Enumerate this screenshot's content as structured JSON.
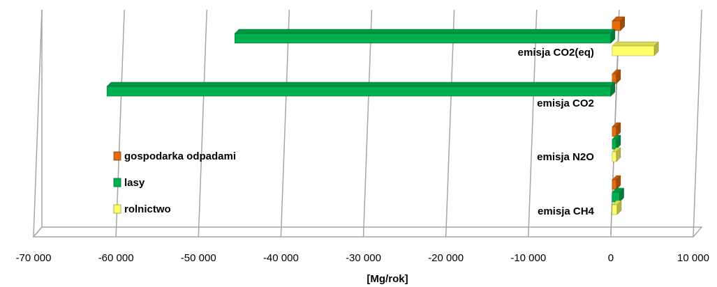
{
  "chart_data": {
    "type": "bar",
    "orientation": "horizontal",
    "style": "3d",
    "categories": [
      "emisja CO2(eq)",
      "emisja CO2",
      "emisja N2O",
      "emisja CH4"
    ],
    "series": [
      {
        "name": "gospodarka odpadami",
        "color": "#E46C0A",
        "values": [
          1000,
          400,
          400,
          400
        ]
      },
      {
        "name": "lasy",
        "color": "#00B050",
        "values": [
          -45600,
          -61100,
          500,
          900
        ]
      },
      {
        "name": "rolnictwo",
        "color": "#FFFF66",
        "values": [
          5100,
          0,
          500,
          600
        ]
      }
    ],
    "xlabel": "[Mg/rok]",
    "xlim": [
      -70000,
      10000
    ],
    "xticks": [
      -70000,
      -60000,
      -50000,
      -40000,
      -30000,
      -20000,
      -10000,
      0,
      10000
    ],
    "xtick_labels": [
      "-70 000",
      "-60 000",
      "-50 000",
      "-40 000",
      "-30 000",
      "-20 000",
      "-10 000",
      "0",
      "10 000"
    ],
    "grid": true,
    "legend": {
      "position": "left",
      "entries": [
        "gospodarka odpadami",
        "lasy",
        "rolnictwo"
      ]
    }
  }
}
